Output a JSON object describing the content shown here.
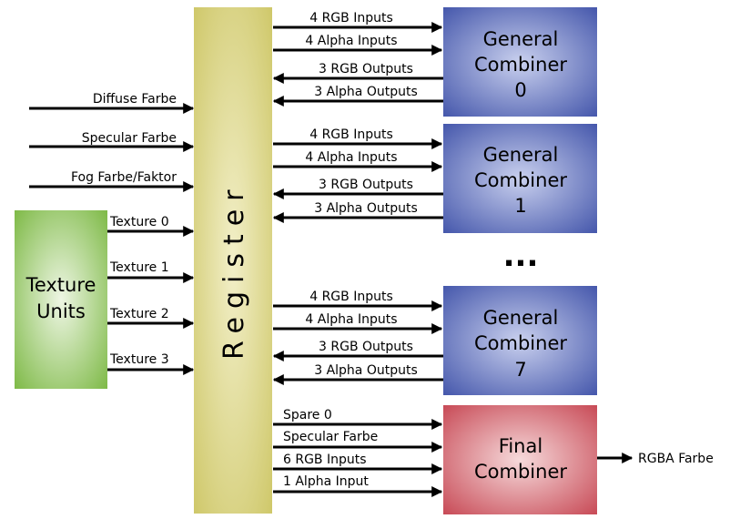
{
  "register": {
    "label": "Register",
    "color": "#d8d27a"
  },
  "left_inputs": [
    "Diffuse Farbe",
    "Specular Farbe",
    "Fog Farbe/Faktor"
  ],
  "texture_units": {
    "label_line1": "Texture",
    "label_line2": "Units",
    "color": "#8fc45a",
    "outputs": [
      "Texture 0",
      "Texture 1",
      "Texture 2",
      "Texture 3"
    ]
  },
  "general_combiners": [
    {
      "title_line1": "General",
      "title_line2": "Combiner",
      "index": "0",
      "inputs": [
        "4 RGB Inputs",
        "4 Alpha Inputs"
      ],
      "outputs": [
        "3 RGB Outputs",
        "3 Alpha Outputs"
      ]
    },
    {
      "title_line1": "General",
      "title_line2": "Combiner",
      "index": "1",
      "inputs": [
        "4 RGB Inputs",
        "4 Alpha Inputs"
      ],
      "outputs": [
        "3 RGB Outputs",
        "3 Alpha Outputs"
      ]
    },
    {
      "title_line1": "General",
      "title_line2": "Combiner",
      "index": "7",
      "inputs": [
        "4 RGB Inputs",
        "4 Alpha Inputs"
      ],
      "outputs": [
        "3 RGB Outputs",
        "3 Alpha Outputs"
      ]
    }
  ],
  "ellipsis": "...",
  "final_combiner": {
    "title_line1": "Final",
    "title_line2": "Combiner",
    "color": "#d0606a",
    "inputs": [
      "Spare 0",
      "Specular Farbe",
      "6 RGB Inputs",
      "1 Alpha Input"
    ],
    "output": "RGBA Farbe"
  },
  "general_color": "#4f63b4"
}
